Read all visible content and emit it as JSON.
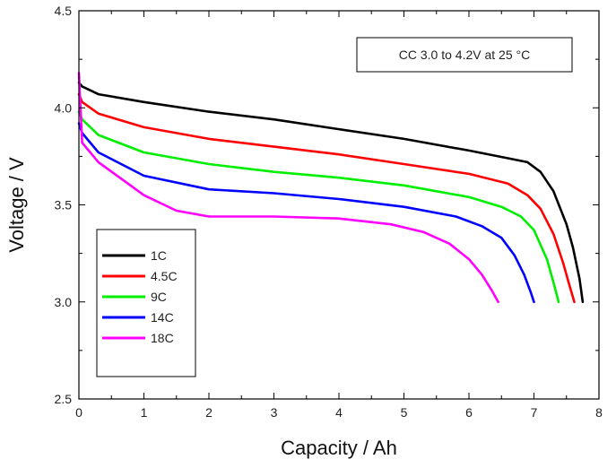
{
  "chart_data": {
    "type": "line",
    "xlabel": "Capacity / Ah",
    "ylabel": "Voltage / V",
    "xlim": [
      0,
      8
    ],
    "ylim": [
      2.5,
      4.5
    ],
    "xticks": [
      "0",
      "1",
      "2",
      "3",
      "4",
      "5",
      "6",
      "7",
      "8"
    ],
    "yticks": [
      "2.5",
      "3.0",
      "3.5",
      "4.0",
      "4.5"
    ],
    "annotation": "CC 3.0 to 4.2V at 25 °C",
    "legend_position": "lower-left",
    "grid": false,
    "series": [
      {
        "name": "1C",
        "color": "#000000",
        "x": [
          0,
          0.05,
          0.3,
          1,
          2,
          3,
          4,
          5,
          6,
          6.6,
          6.9,
          7.1,
          7.3,
          7.5,
          7.6,
          7.7,
          7.75
        ],
        "y": [
          4.13,
          4.11,
          4.07,
          4.03,
          3.98,
          3.94,
          3.89,
          3.84,
          3.78,
          3.74,
          3.72,
          3.67,
          3.57,
          3.4,
          3.28,
          3.12,
          3.0
        ]
      },
      {
        "name": "4.5C",
        "color": "#ff0000",
        "x": [
          0,
          0.05,
          0.3,
          1,
          2,
          3,
          4,
          5,
          6,
          6.6,
          6.9,
          7.1,
          7.3,
          7.45,
          7.55,
          7.62
        ],
        "y": [
          4.07,
          4.03,
          3.97,
          3.9,
          3.84,
          3.8,
          3.76,
          3.71,
          3.66,
          3.61,
          3.55,
          3.48,
          3.35,
          3.2,
          3.08,
          3.0
        ]
      },
      {
        "name": "9C",
        "color": "#00ee00",
        "x": [
          0,
          0.05,
          0.3,
          1,
          2,
          3,
          4,
          5,
          6,
          6.5,
          6.8,
          7.0,
          7.2,
          7.3,
          7.38
        ],
        "y": [
          3.98,
          3.94,
          3.86,
          3.77,
          3.71,
          3.67,
          3.64,
          3.6,
          3.54,
          3.49,
          3.44,
          3.37,
          3.22,
          3.1,
          3.0
        ]
      },
      {
        "name": "14C",
        "color": "#0000ff",
        "x": [
          0,
          0.05,
          0.3,
          1,
          2,
          3,
          4,
          5,
          5.8,
          6.2,
          6.5,
          6.7,
          6.85,
          6.95,
          7.0
        ],
        "y": [
          3.92,
          3.87,
          3.77,
          3.65,
          3.58,
          3.56,
          3.53,
          3.49,
          3.44,
          3.39,
          3.33,
          3.24,
          3.14,
          3.05,
          3.0
        ]
      },
      {
        "name": "18C",
        "color": "#ff00ff",
        "x": [
          0,
          0.05,
          0.3,
          1,
          1.5,
          2,
          3,
          4,
          4.8,
          5.3,
          5.7,
          6.0,
          6.2,
          6.35,
          6.45
        ],
        "y": [
          4.18,
          3.82,
          3.72,
          3.55,
          3.47,
          3.44,
          3.44,
          3.43,
          3.4,
          3.36,
          3.3,
          3.22,
          3.14,
          3.06,
          3.0
        ]
      }
    ]
  }
}
